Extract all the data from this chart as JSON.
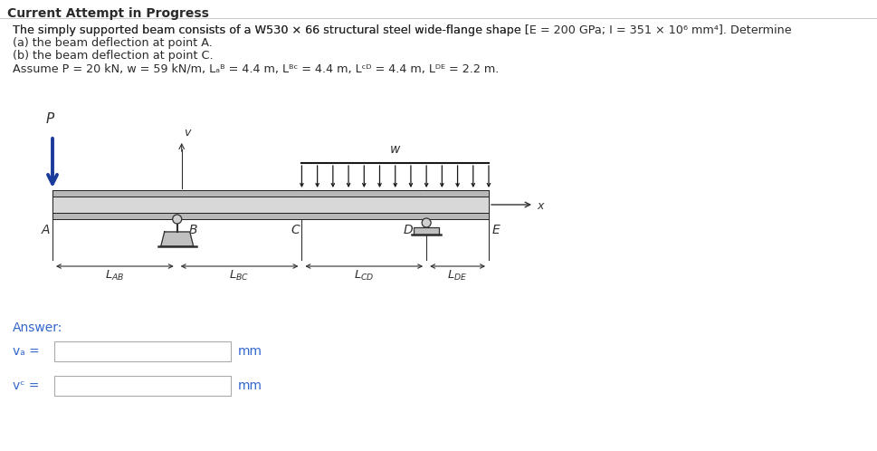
{
  "bg_color": "#ffffff",
  "text_color": "#2a2a2a",
  "blue_color": "#3366cc",
  "title": "Current Attempt in Progress",
  "answer_label": "Answer:",
  "mm_label": "mm",
  "beam_gray_light": "#c8c8c8",
  "beam_gray_mid": "#b8b8b8",
  "beam_gray_dark": "#888888",
  "beam_outline": "#303030",
  "support_gray": "#888888",
  "arrow_blue": "#1a3a9c",
  "dim_color": "#303030",
  "load_color": "#1a1a1a"
}
